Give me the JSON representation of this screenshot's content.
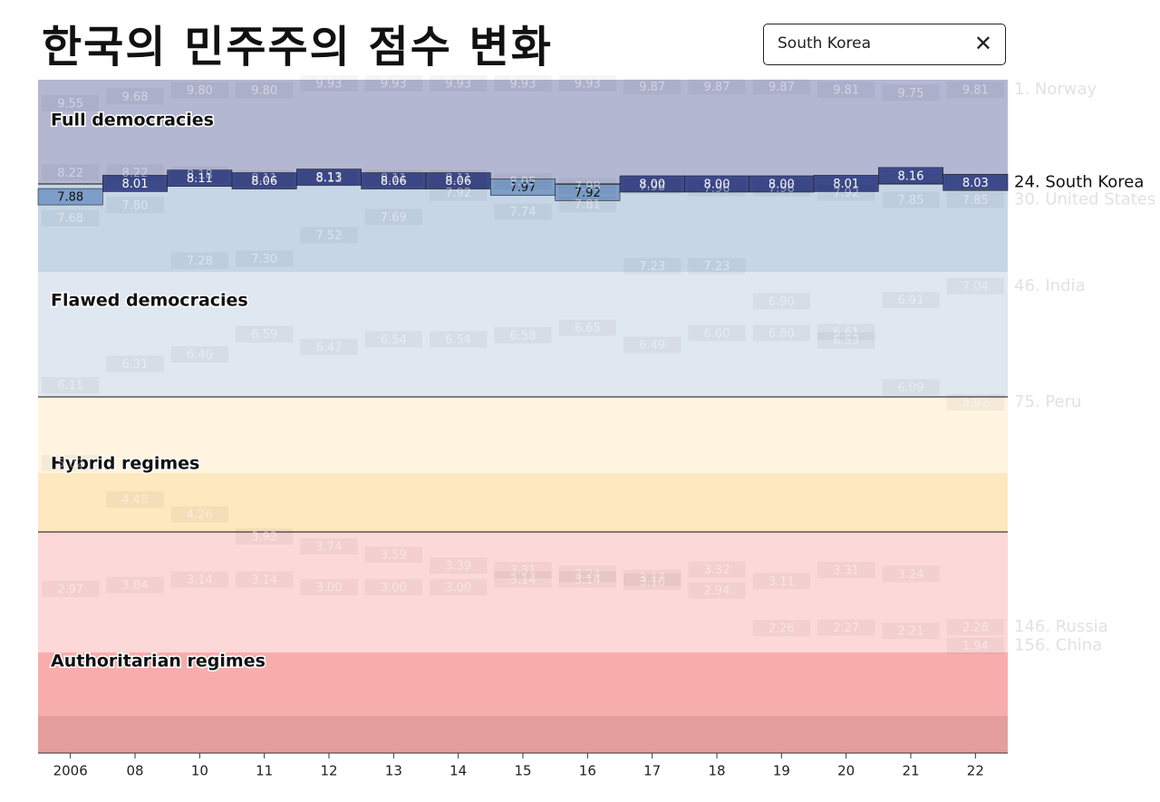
{
  "header": {
    "title": "한국의 민주주의 점수 변화",
    "search": "South Korea"
  },
  "chart_data": {
    "type": "step",
    "categories": [
      "2006",
      "08",
      "10",
      "11",
      "12",
      "13",
      "14",
      "15",
      "16",
      "17",
      "18",
      "19",
      "20",
      "21",
      "22"
    ],
    "bands": [
      "Full democracies",
      "Flawed democracies",
      "Hybrid regimes",
      "Authoritarian regimes"
    ],
    "highlight": "South Korea",
    "series": [
      {
        "name": "Norway",
        "label": "1. Norway",
        "values": [
          9.55,
          9.68,
          9.8,
          9.8,
          9.93,
          9.93,
          9.93,
          9.93,
          9.93,
          9.87,
          9.87,
          9.87,
          9.81,
          9.75,
          9.81
        ],
        "value_labels": [
          "9.55",
          "9.68",
          "9.80",
          "9.80",
          "9.93",
          "9.93",
          "9.93",
          "9.93",
          "9.93",
          "9.87",
          "9.87",
          "9.87",
          "9.81",
          "9.75",
          "9.81"
        ]
      },
      {
        "name": "South Korea",
        "label": "24. South Korea",
        "color": "#3d4a8a",
        "values": [
          7.88,
          8.01,
          8.11,
          8.06,
          8.13,
          8.06,
          8.06,
          7.97,
          7.92,
          8,
          8,
          8,
          8.01,
          8.16,
          8.03
        ],
        "value_labels": [
          "7.88",
          "8.01",
          "8.11",
          "8.06",
          "8.13",
          "8.06",
          "8.06",
          "7.97",
          "7.92",
          "8.00",
          "8.00",
          "8.00",
          "8.01",
          "8.16",
          "8.03"
        ]
      },
      {
        "name": "United States",
        "label": "30. United States",
        "values": [
          8.22,
          8.22,
          8.18,
          8.11,
          8.11,
          8.11,
          8.11,
          8.05,
          7.98,
          7.98,
          7.96,
          7.96,
          7.92,
          7.85,
          7.85
        ],
        "value_labels": [
          "8.22",
          "8.22",
          "8.18",
          "8.11",
          "8.11",
          "8.11",
          "8.11",
          "8.05",
          "7.98",
          "7.98",
          "7.96",
          "7.96",
          "7.92",
          "7.85",
          "7.85"
        ]
      },
      {
        "name": "India",
        "label": "46. India",
        "values": [
          7.68,
          7.8,
          7.28,
          7.3,
          7.52,
          7.69,
          7.92,
          7.74,
          7.81,
          7.23,
          7.23,
          6.9,
          6.61,
          6.91,
          7.04
        ],
        "value_labels": [
          "7.68",
          "7.80",
          "7.28",
          "7.30",
          "7.52",
          "7.69",
          "7.92",
          "7.74",
          "7.81",
          "7.23",
          "7.23",
          "6.90",
          "6.61",
          "6.91",
          "7.04"
        ]
      },
      {
        "name": "Peru",
        "label": "75. Peru",
        "values": [
          6.11,
          6.31,
          6.4,
          6.59,
          6.47,
          6.54,
          6.54,
          6.58,
          6.65,
          6.49,
          6.6,
          6.6,
          6.53,
          6.09,
          5.92
        ],
        "value_labels": [
          "6.11",
          "6.31",
          "6.40",
          "6.59",
          "6.47",
          "6.54",
          "6.54",
          "6.58",
          "6.65",
          "6.49",
          "6.60",
          "6.60",
          "6.53",
          "6.09",
          "5.92"
        ]
      },
      {
        "name": "Russia",
        "label": "146. Russia",
        "values": [
          5.02,
          4.48,
          4.26,
          3.92,
          3.74,
          3.59,
          3.39,
          3.31,
          3.24,
          3.17,
          2.94,
          3.11,
          3.31,
          3.24,
          2.28
        ],
        "value_labels": [
          "5.02",
          "4.48",
          "4.26",
          "3.92",
          "3.74",
          "3.59",
          "3.39",
          "3.31",
          "3.24",
          "3.17",
          "2.94",
          "3.11",
          "3.31",
          "3.24",
          "2.28"
        ]
      },
      {
        "name": "China",
        "label": "156. China",
        "values": [
          2.97,
          3.04,
          3.14,
          3.14,
          3,
          3,
          3,
          3.14,
          3.14,
          3.1,
          3.32,
          2.26,
          2.27,
          2.21,
          1.94
        ],
        "value_labels": [
          "2.97",
          "3.04",
          "3.14",
          "3.14",
          "3.00",
          "3.00",
          "3.00",
          "3.14",
          "3.14",
          "3.10",
          "3.32",
          "2.26",
          "2.27",
          "2.21",
          "1.94"
        ]
      }
    ]
  }
}
